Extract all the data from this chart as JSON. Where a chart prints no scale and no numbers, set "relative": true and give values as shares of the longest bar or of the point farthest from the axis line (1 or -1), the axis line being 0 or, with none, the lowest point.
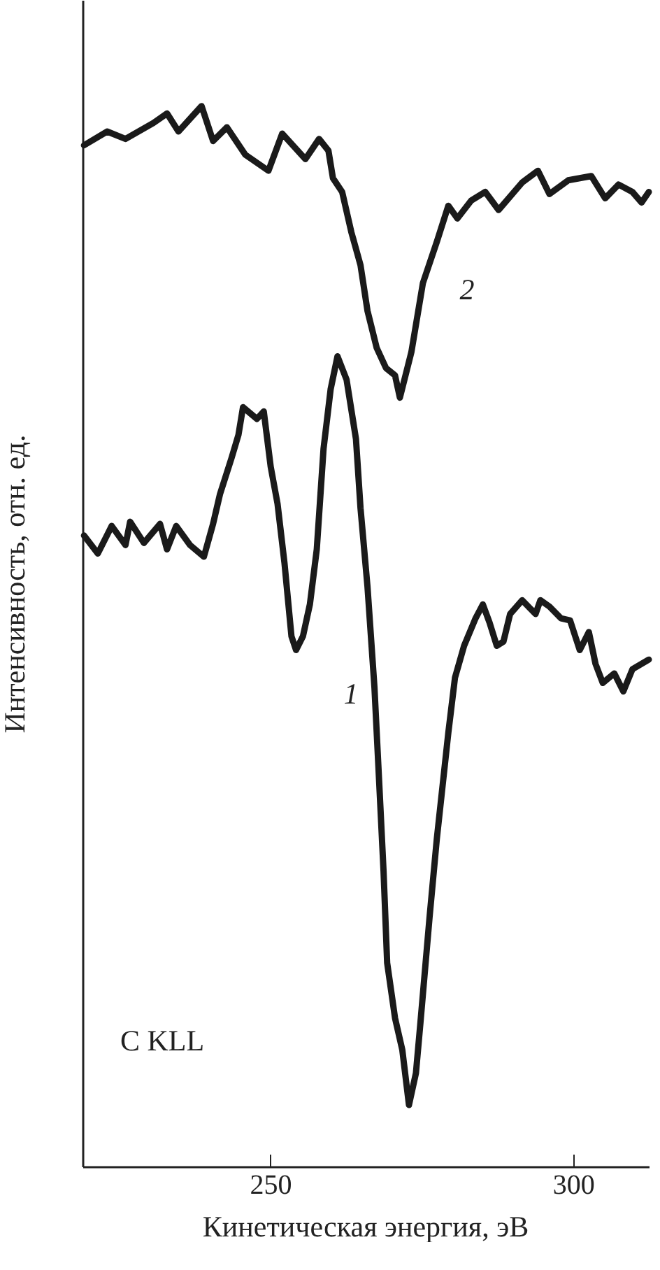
{
  "chart_data": {
    "type": "line",
    "xlabel": "Кинетическая энергия, эВ",
    "ylabel": "Интенсивность, отн. ед.",
    "relative": true,
    "xlim": [
      219,
      312.5
    ],
    "xticks": [
      250,
      300
    ],
    "grid": false,
    "legend": false,
    "line_style": "solid",
    "marker": "none",
    "annotations": [
      "C KLL",
      "1",
      "2"
    ],
    "series": [
      {
        "color": "#1a1a1a",
        "x": [
          219.25,
          221.53,
          223.82,
          226.1,
          226.86,
          229.14,
          231.8,
          232.95,
          234.47,
          236.75,
          239.04,
          240.56,
          241.7,
          243.6,
          244.75,
          245.5,
          247.8,
          248.93,
          250.07,
          251.2,
          252.35,
          253.5,
          254.26,
          255.4,
          256.54,
          257.68,
          258.8,
          259.97,
          261.1,
          262.6,
          264.15,
          264.9,
          266.05,
          267.2,
          267.96,
          268.7,
          269.3,
          270.6,
          271.8,
          272.9,
          274.05,
          274.8,
          276.3,
          277.5,
          279.4,
          280.5,
          282.0,
          283.9,
          285.1,
          286.2,
          287.4,
          288.5,
          289.6,
          291.6,
          293.8,
          294.6,
          296.1,
          298.0,
          299.5,
          301.1,
          302.6,
          303.7,
          304.9,
          306.8,
          308.3,
          309.8,
          312.5
        ],
        "values": [
          0.595,
          0.578,
          0.604,
          0.586,
          0.608,
          0.588,
          0.606,
          0.582,
          0.604,
          0.586,
          0.575,
          0.606,
          0.634,
          0.668,
          0.69,
          0.716,
          0.705,
          0.712,
          0.66,
          0.625,
          0.569,
          0.5,
          0.487,
          0.5,
          0.53,
          0.582,
          0.677,
          0.733,
          0.764,
          0.742,
          0.686,
          0.621,
          0.547,
          0.452,
          0.365,
          0.279,
          0.192,
          0.14,
          0.11,
          0.058,
          0.088,
          0.136,
          0.235,
          0.309,
          0.409,
          0.461,
          0.491,
          0.517,
          0.53,
          0.513,
          0.491,
          0.495,
          0.521,
          0.534,
          0.521,
          0.534,
          0.528,
          0.517,
          0.515,
          0.487,
          0.504,
          0.474,
          0.456,
          0.465,
          0.448,
          0.469,
          0.478
        ]
      },
      {
        "color": "#1a1a1a",
        "x": [
          219.25,
          223.06,
          226.1,
          230.7,
          232.96,
          234.85,
          238.66,
          240.56,
          242.84,
          245.9,
          249.7,
          251.97,
          255.8,
          258.06,
          259.6,
          260.35,
          261.87,
          263.39,
          264.9,
          266.05,
          267.57,
          269.1,
          270.6,
          271.4,
          273.3,
          275.2,
          277.5,
          279.4,
          280.9,
          283.2,
          285.5,
          287.7,
          291.6,
          294.2,
          296.1,
          299.2,
          303.0,
          305.3,
          307.5,
          309.8,
          311.3,
          312.5
        ],
        "values": [
          0.963,
          0.976,
          0.969,
          0.984,
          0.993,
          0.976,
          1,
          0.967,
          0.98,
          0.954,
          0.939,
          0.974,
          0.95,
          0.969,
          0.958,
          0.932,
          0.919,
          0.881,
          0.85,
          0.807,
          0.772,
          0.753,
          0.746,
          0.725,
          0.768,
          0.833,
          0.872,
          0.906,
          0.894,
          0.911,
          0.919,
          0.902,
          0.928,
          0.939,
          0.917,
          0.93,
          0.934,
          0.913,
          0.926,
          0.919,
          0.909,
          0.919
        ]
      }
    ]
  }
}
